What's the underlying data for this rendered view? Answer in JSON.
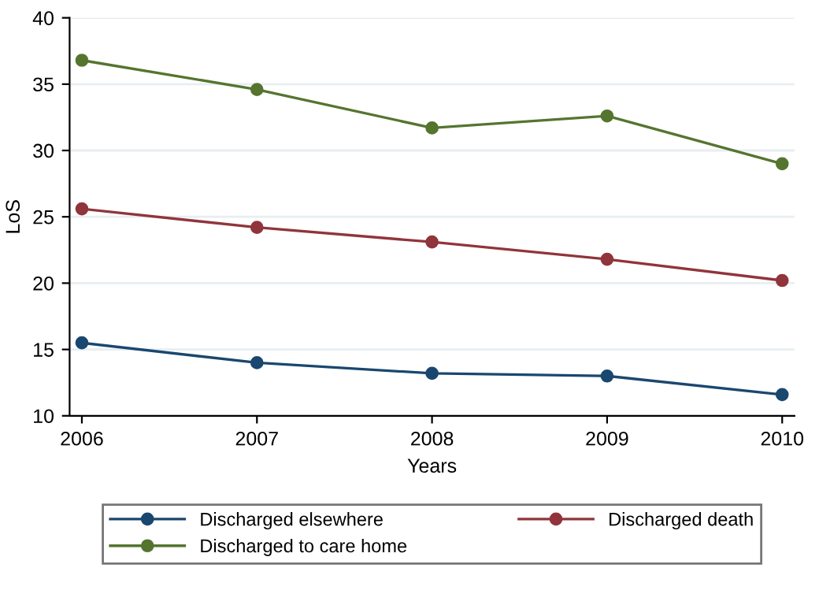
{
  "chart_data": {
    "type": "line",
    "xlabel": "Years",
    "ylabel": "LoS",
    "x": [
      2006,
      2007,
      2008,
      2009,
      2010
    ],
    "series": [
      {
        "name": "Discharged elsewhere",
        "color": "#1a476f",
        "values": [
          15.5,
          14.0,
          13.2,
          13.0,
          11.6
        ]
      },
      {
        "name": "Discharged death",
        "color": "#90353b",
        "values": [
          25.6,
          24.2,
          23.1,
          21.8,
          20.2
        ]
      },
      {
        "name": "Discharged to care home",
        "color": "#55752f",
        "values": [
          36.8,
          34.6,
          31.7,
          32.6,
          29.0
        ]
      }
    ],
    "xlim": [
      2005.93,
      2010.07
    ],
    "xticks": [
      2006,
      2007,
      2008,
      2009,
      2010
    ],
    "ylim": [
      10,
      40
    ],
    "yticks": [
      10,
      15,
      20,
      25,
      30,
      35,
      40
    ],
    "grid": "y",
    "legend": "bottom",
    "marker": "circle",
    "line_style": "solid"
  }
}
